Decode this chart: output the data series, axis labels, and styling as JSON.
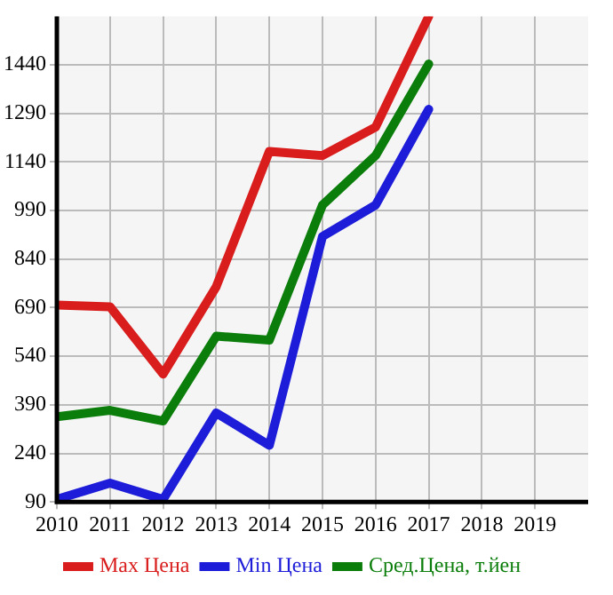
{
  "chart_data": {
    "type": "line",
    "x": [
      2010,
      2011,
      2012,
      2013,
      2014,
      2015,
      2016,
      2017
    ],
    "series": [
      {
        "name": "Max Цена",
        "color": "#d91c1c",
        "values": [
          698,
          693,
          485,
          755,
          1173,
          1160,
          1248,
          1590
        ]
      },
      {
        "name": "Min Цена",
        "color": "#1c1cd9",
        "values": [
          98,
          148,
          98,
          365,
          265,
          910,
          1007,
          1303
        ]
      },
      {
        "name": "Сред.Цена, т.йен",
        "color": "#0a7d0a",
        "values": [
          353,
          373,
          340,
          602,
          590,
          1007,
          1160,
          1443
        ]
      }
    ],
    "xlim": [
      2010,
      2020
    ],
    "xticks": [
      2010,
      2011,
      2012,
      2013,
      2014,
      2015,
      2016,
      2017,
      2018,
      2019
    ],
    "ylim": [
      90,
      1590
    ],
    "yticks": [
      90,
      240,
      390,
      540,
      690,
      840,
      990,
      1140,
      1290,
      1440
    ],
    "grid": true,
    "legend": "bottom",
    "marker": "none",
    "line_style": "solid"
  }
}
